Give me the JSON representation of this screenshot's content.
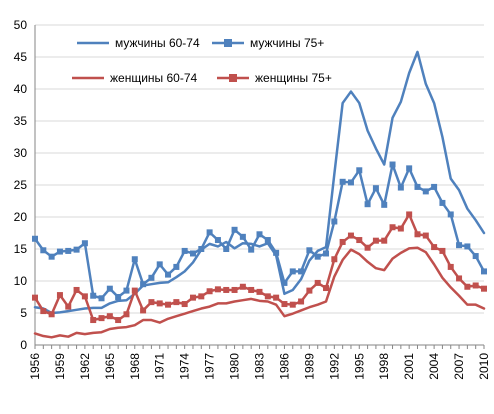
{
  "chart_data": {
    "type": "line",
    "title": "",
    "xlabel": "",
    "ylabel": "",
    "x": [
      1956,
      1957,
      1958,
      1959,
      1960,
      1961,
      1962,
      1963,
      1964,
      1965,
      1966,
      1967,
      1968,
      1969,
      1970,
      1971,
      1972,
      1973,
      1974,
      1975,
      1976,
      1977,
      1978,
      1979,
      1980,
      1981,
      1982,
      1983,
      1984,
      1985,
      1986,
      1987,
      1988,
      1989,
      1990,
      1991,
      1992,
      1993,
      1994,
      1995,
      1996,
      1997,
      1998,
      1999,
      2000,
      2001,
      2002,
      2003,
      2004,
      2005,
      2006,
      2007,
      2008,
      2009,
      2010
    ],
    "x_ticks": [
      "1956",
      "1959",
      "1962",
      "1965",
      "1968",
      "1971",
      "1974",
      "1977",
      "1980",
      "1983",
      "1986",
      "1989",
      "1992",
      "1995",
      "1998",
      "2001",
      "2004",
      "2007",
      "2010"
    ],
    "ylim": [
      0,
      50
    ],
    "y_ticks": [
      "0",
      "5",
      "10",
      "15",
      "20",
      "25",
      "30",
      "35",
      "40",
      "45",
      "50"
    ],
    "grid": "horizontal",
    "legend_position": "top",
    "series": [
      {
        "name": "мужчины 60-74",
        "color": "#4f81bd",
        "marker": "none",
        "values": [
          5.9,
          5.7,
          5.0,
          5.1,
          5.3,
          5.5,
          5.7,
          5.8,
          5.8,
          6.5,
          6.9,
          7.0,
          8.0,
          9.3,
          9.5,
          9.7,
          9.8,
          10.6,
          11.5,
          12.9,
          14.9,
          15.8,
          15.4,
          16.1,
          15.1,
          15.9,
          15.8,
          15.4,
          15.9,
          14.0,
          8.0,
          8.6,
          10.3,
          13.2,
          14.7,
          15.3,
          26.7,
          37.8,
          39.6,
          37.8,
          33.5,
          30.7,
          28.2,
          35.5,
          38.0,
          42.5,
          45.8,
          40.8,
          37.8,
          32.5,
          26.0,
          24.2,
          21.3,
          19.5,
          17.5
        ]
      },
      {
        "name": "мужчины 75+",
        "color": "#4f81bd",
        "marker": "square",
        "values": [
          16.6,
          14.8,
          13.8,
          14.6,
          14.7,
          14.9,
          15.9,
          7.7,
          7.3,
          8.8,
          7.5,
          8.5,
          13.4,
          9.5,
          10.5,
          12.6,
          11.0,
          12.2,
          14.7,
          14.3,
          15.0,
          17.6,
          16.4,
          15.0,
          18.0,
          16.9,
          14.9,
          17.3,
          16.4,
          14.4,
          9.7,
          11.5,
          11.5,
          14.8,
          13.8,
          14.3,
          19.3,
          25.5,
          25.4,
          27.3,
          22.0,
          24.5,
          21.9,
          28.2,
          24.6,
          27.6,
          24.7,
          24.0,
          24.7,
          22.2,
          20.4,
          15.6,
          15.4,
          13.9,
          11.5
        ]
      },
      {
        "name": "женщины 60-74",
        "color": "#c0504d",
        "marker": "none",
        "values": [
          1.8,
          1.4,
          1.2,
          1.5,
          1.3,
          1.9,
          1.7,
          1.9,
          2.0,
          2.5,
          2.7,
          2.8,
          3.1,
          3.9,
          3.9,
          3.5,
          4.1,
          4.5,
          4.9,
          5.3,
          5.7,
          6.0,
          6.5,
          6.5,
          6.8,
          7.0,
          7.2,
          6.9,
          6.8,
          6.3,
          4.5,
          4.9,
          5.4,
          5.9,
          6.3,
          6.8,
          10.7,
          13.3,
          14.9,
          14.2,
          13.0,
          12.0,
          11.7,
          13.5,
          14.4,
          15.1,
          15.2,
          14.5,
          12.6,
          10.5,
          9.0,
          7.7,
          6.3,
          6.3,
          5.7
        ]
      },
      {
        "name": "женщины 75+",
        "color": "#c0504d",
        "marker": "square",
        "values": [
          7.4,
          5.3,
          4.8,
          7.8,
          6.0,
          8.6,
          7.6,
          3.9,
          4.2,
          4.5,
          3.9,
          4.8,
          8.5,
          5.4,
          6.7,
          6.5,
          6.3,
          6.7,
          6.4,
          7.4,
          7.6,
          8.4,
          8.7,
          8.6,
          8.6,
          9.1,
          8.6,
          8.3,
          7.6,
          7.4,
          6.4,
          6.3,
          6.8,
          8.5,
          9.7,
          8.9,
          13.4,
          16.1,
          17.1,
          16.4,
          15.2,
          16.3,
          16.3,
          18.4,
          18.2,
          20.4,
          17.3,
          17.1,
          15.3,
          14.7,
          12.2,
          10.4,
          9.1,
          9.3,
          8.8
        ]
      }
    ]
  }
}
